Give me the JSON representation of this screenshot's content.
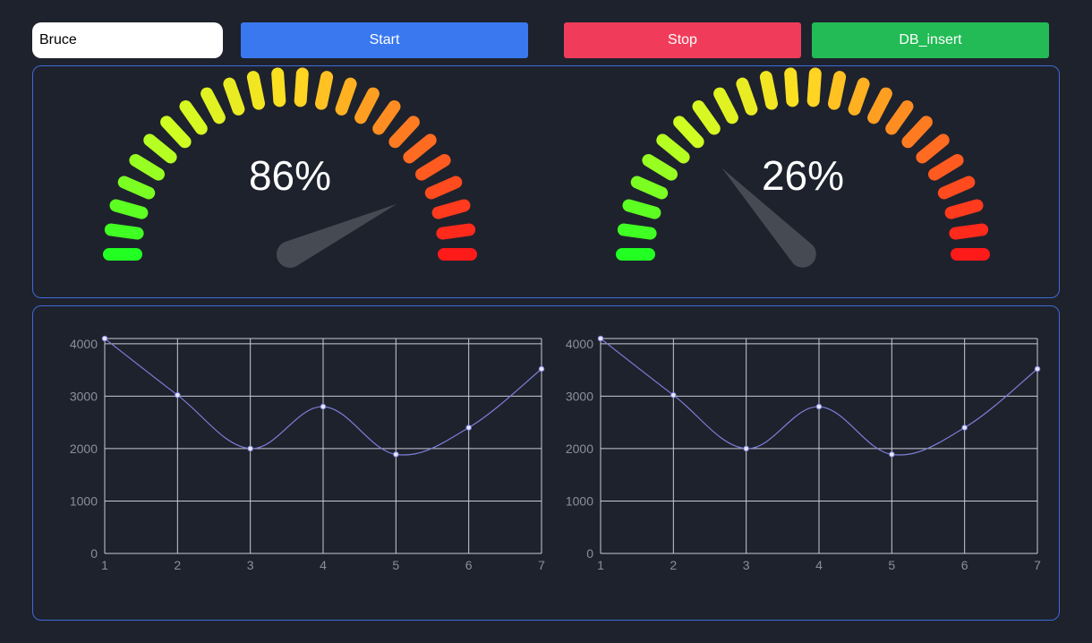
{
  "toolbar": {
    "name_value": "Bruce",
    "start_label": "Start",
    "stop_label": "Stop",
    "db_insert_label": "DB_insert",
    "colors": {
      "start": "#3a78f0",
      "stop": "#f03c5a",
      "db_insert": "#22bb55"
    }
  },
  "gauges": [
    {
      "label": "86%",
      "value": 86
    },
    {
      "label": "26%",
      "value": 26
    }
  ],
  "gauge_style": {
    "segment_count": 24,
    "needle_color": "#464a52",
    "color_stops": [
      "#22ff22",
      "#ccff22",
      "#ffdd22",
      "#ff7722",
      "#ff1a1a"
    ]
  },
  "chart_data": [
    {
      "type": "line",
      "x": [
        1,
        2,
        3,
        4,
        5,
        6,
        7
      ],
      "values": [
        4100,
        3020,
        2000,
        2800,
        1890,
        2400,
        3520
      ],
      "xticks": [
        "1",
        "2",
        "3",
        "4",
        "5",
        "6",
        "7"
      ],
      "yticks": [
        "0",
        "1000",
        "2000",
        "3000",
        "4000"
      ],
      "xlim": [
        1,
        7
      ],
      "ylim": [
        0,
        4100
      ],
      "grid": true,
      "line_color": "#7d7fd6",
      "point_color": "#e6e8ff"
    },
    {
      "type": "line",
      "x": [
        1,
        2,
        3,
        4,
        5,
        6,
        7
      ],
      "values": [
        4100,
        3020,
        2000,
        2800,
        1890,
        2400,
        3520
      ],
      "xticks": [
        "1",
        "2",
        "3",
        "4",
        "5",
        "6",
        "7"
      ],
      "yticks": [
        "0",
        "1000",
        "2000",
        "3000",
        "4000"
      ],
      "xlim": [
        1,
        7
      ],
      "ylim": [
        0,
        4100
      ],
      "grid": true,
      "line_color": "#7d7fd6",
      "point_color": "#e6e8ff"
    }
  ]
}
